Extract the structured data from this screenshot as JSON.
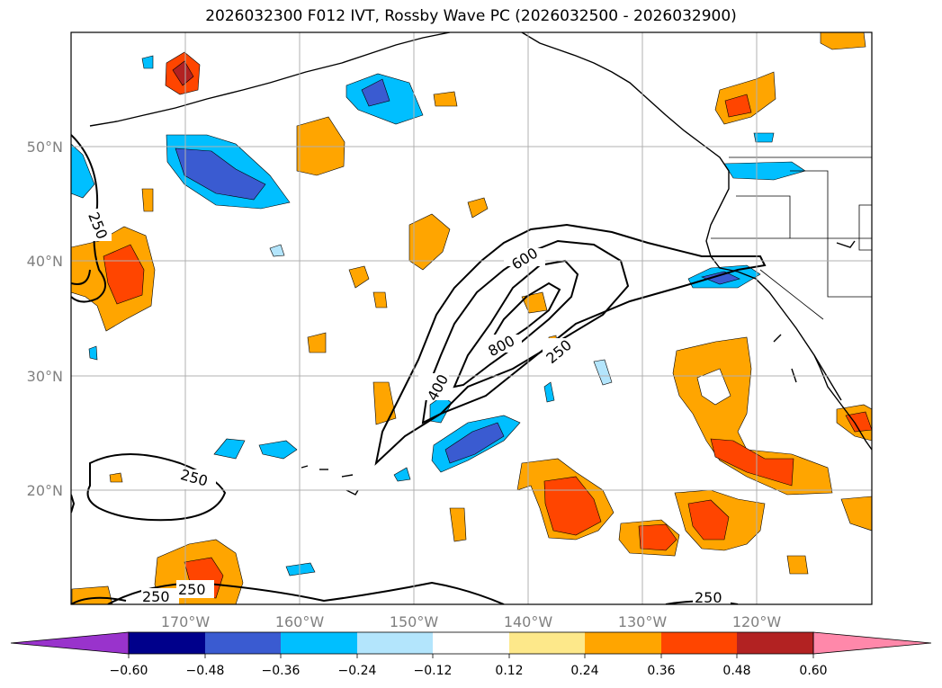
{
  "title": "2026032300 F012 IVT, Rossby Wave PC (2026032500 - 2026032900)",
  "map": {
    "lat_labels": [
      "50°N",
      "40°N",
      "30°N",
      "20°N"
    ],
    "lon_labels": [
      "170°W",
      "160°W",
      "150°W",
      "140°W",
      "130°W",
      "120°W"
    ],
    "ivt_contour_labels": [
      "250",
      "600",
      "800",
      "400",
      "250",
      "250",
      "250",
      "250",
      "250"
    ]
  },
  "colorbar": {
    "tick_labels": [
      "−0.60",
      "−0.48",
      "−0.36",
      "−0.24",
      "−0.12",
      "0.12",
      "0.24",
      "0.36",
      "0.48",
      "0.60"
    ],
    "colors": [
      "#9933cc",
      "#00008b",
      "#3a5bd1",
      "#00bfff",
      "#b3e5fc",
      "#ffffff",
      "#fde88a",
      "#ffa500",
      "#ff4500",
      "#b22222",
      "#ff88aa"
    ]
  }
}
